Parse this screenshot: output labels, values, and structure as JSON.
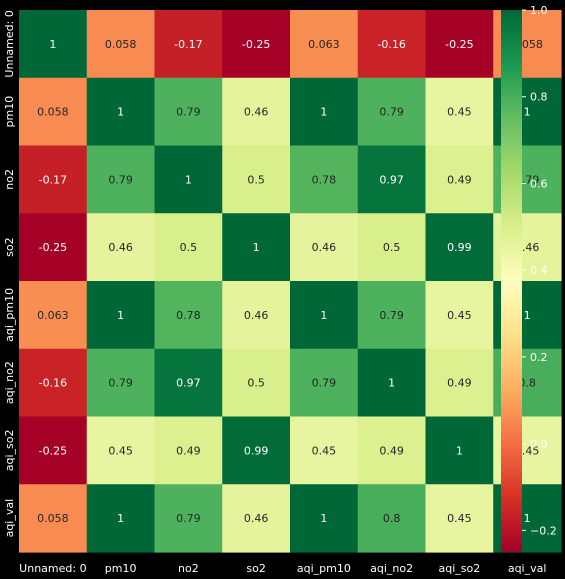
{
  "chart_data": {
    "type": "heatmap",
    "title": "",
    "xlabel": "",
    "ylabel": "",
    "x_categories": [
      "Unnamed: 0",
      "pm10",
      "no2",
      "so2",
      "aqi_pm10",
      "aqi_no2",
      "aqi_so2",
      "aqi_val"
    ],
    "y_categories": [
      "Unnamed: 0",
      "pm10",
      "no2",
      "so2",
      "aqi_pm10",
      "aqi_no2",
      "aqi_so2",
      "aqi_val"
    ],
    "values": [
      [
        1,
        0.058,
        -0.17,
        -0.25,
        0.063,
        -0.16,
        -0.25,
        0.058
      ],
      [
        0.058,
        1,
        0.79,
        0.46,
        1,
        0.79,
        0.45,
        1
      ],
      [
        -0.17,
        0.79,
        1,
        0.5,
        0.78,
        0.97,
        0.49,
        0.79
      ],
      [
        -0.25,
        0.46,
        0.5,
        1,
        0.46,
        0.5,
        0.99,
        0.46
      ],
      [
        0.063,
        1,
        0.78,
        0.46,
        1,
        0.79,
        0.45,
        1
      ],
      [
        -0.16,
        0.79,
        0.97,
        0.5,
        0.79,
        1,
        0.49,
        0.8
      ],
      [
        -0.25,
        0.45,
        0.49,
        0.99,
        0.45,
        0.49,
        1,
        0.45
      ],
      [
        0.058,
        1,
        0.79,
        0.46,
        1,
        0.8,
        0.45,
        1
      ]
    ],
    "annotations": [
      [
        "1",
        "0.058",
        "-0.17",
        "-0.25",
        "0.063",
        "-0.16",
        "-0.25",
        "0.058"
      ],
      [
        "0.058",
        "1",
        "0.79",
        "0.46",
        "1",
        "0.79",
        "0.45",
        "1"
      ],
      [
        "-0.17",
        "0.79",
        "1",
        "0.5",
        "0.78",
        "0.97",
        "0.49",
        "0.79"
      ],
      [
        "-0.25",
        "0.46",
        "0.5",
        "1",
        "0.46",
        "0.5",
        "0.99",
        "0.46"
      ],
      [
        "0.063",
        "1",
        "0.78",
        "0.46",
        "1",
        "0.79",
        "0.45",
        "1"
      ],
      [
        "-0.16",
        "0.79",
        "0.97",
        "0.5",
        "0.79",
        "1",
        "0.49",
        "0.8"
      ],
      [
        "-0.25",
        "0.45",
        "0.49",
        "0.99",
        "0.45",
        "0.49",
        "1",
        "0.45"
      ],
      [
        "0.058",
        "1",
        "0.79",
        "0.46",
        "1",
        "0.8",
        "0.45",
        "1"
      ]
    ],
    "colormap": "RdYlGn",
    "vmin": -0.25,
    "vmax": 1.0,
    "colorbar": {
      "ticks": [
        -0.2,
        0.0,
        0.2,
        0.4,
        0.6,
        0.8,
        1.0
      ],
      "tick_labels": [
        "−0.2",
        "0.0",
        "0.2",
        "0.4",
        "0.6",
        "0.8",
        "1.0"
      ],
      "placement": "right"
    },
    "grid": false,
    "background": "#000000",
    "tick_label_color": "#ffffff"
  }
}
